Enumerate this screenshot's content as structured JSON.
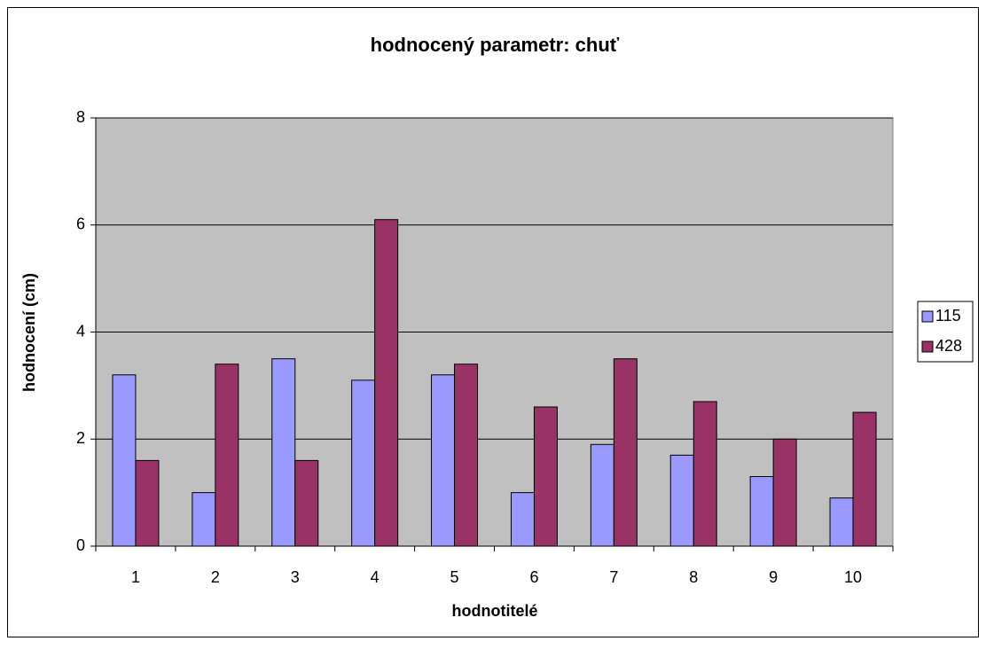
{
  "chart_data": {
    "type": "bar",
    "title": "hodnocený parametr: chuť",
    "x_label": "hodnotitelé",
    "y_label": "hodnocení (cm)",
    "categories": [
      "1",
      "2",
      "3",
      "4",
      "5",
      "6",
      "7",
      "8",
      "9",
      "10"
    ],
    "series": [
      {
        "name": "115",
        "color": "#9999ff",
        "values": [
          3.2,
          1.0,
          3.5,
          3.1,
          3.2,
          1.0,
          1.9,
          1.7,
          1.3,
          0.9
        ]
      },
      {
        "name": "428",
        "color": "#993366",
        "values": [
          1.6,
          3.4,
          1.6,
          6.1,
          3.4,
          2.6,
          3.5,
          2.7,
          2.0,
          2.5
        ]
      }
    ],
    "ylim": [
      0,
      8
    ],
    "yticks": [
      0,
      2,
      4,
      6,
      8
    ],
    "grid": true,
    "legend": "right"
  }
}
